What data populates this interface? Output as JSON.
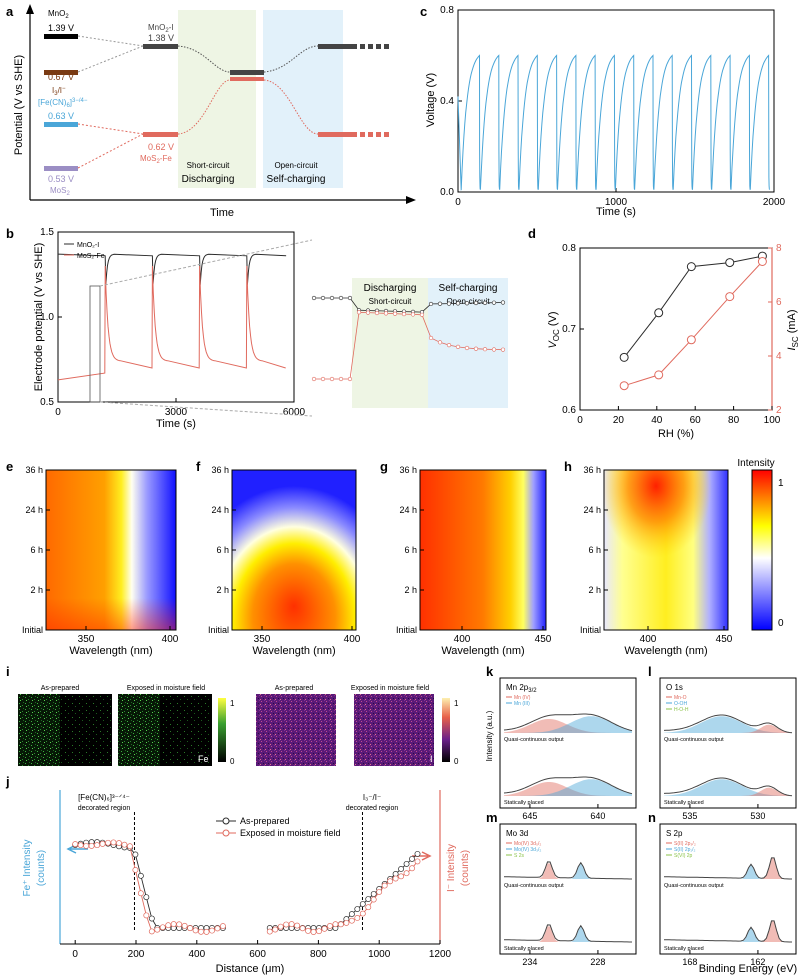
{
  "panels": {
    "a": "a",
    "b": "b",
    "c": "c",
    "d": "d",
    "e": "e",
    "f": "f",
    "g": "g",
    "h": "h",
    "i": "i",
    "j": "j",
    "k": "k",
    "l": "l",
    "m": "m",
    "n": "n"
  },
  "colors": {
    "black": "#2b2b2b",
    "blue": "#4aa6d8",
    "red": "#e06a5e",
    "brown": "#7a3a12",
    "purple": "#9b8ec4",
    "green_bg": "#eef5e4",
    "blue_bg": "#e2f1fa",
    "gray": "#888888"
  },
  "panel_a": {
    "ylabel": "Potential (V vs SHE)",
    "xlabel": "Time",
    "levels": [
      {
        "label": "MnO",
        "sub": "2",
        "value": "1.39 V"
      },
      {
        "label": "I",
        "sub": "3",
        "label2": "/I",
        "sup2": "−",
        "value": "0.67 V"
      },
      {
        "label": "[Fe(CN)",
        "sub": "6",
        "label2": "]",
        "sup2": "3−/4−",
        "value": "0.63 V"
      },
      {
        "label": "MoS",
        "sub": "2",
        "value": "0.53 V"
      }
    ],
    "mid_top": {
      "label": "MnO",
      "sub": "2",
      "label2": "-I",
      "value": "1.38 V"
    },
    "mid_bot": {
      "label": "MoS",
      "sub": "2",
      "label2": "-Fe",
      "value": "0.62 V"
    },
    "discharge_1": "Short-circuit",
    "discharge_2": "Discharging",
    "charge_1": "Open-circuit",
    "charge_2": "Self-charging"
  },
  "chart_data": [
    {
      "panel": "c",
      "type": "line",
      "xlabel": "Time (s)",
      "ylabel": "Voltage (V)",
      "xlim": [
        0,
        2000
      ],
      "ylim": [
        0.0,
        0.8
      ],
      "xticks": [
        "0",
        "1000",
        "2000"
      ],
      "yticks": [
        "0.0",
        "0.4",
        "0.8"
      ],
      "cycles": 16,
      "vmin": 0.01,
      "vmax": 0.6,
      "period_s": 122
    },
    {
      "panel": "b",
      "type": "line",
      "xlabel": "Time (s)",
      "ylabel": "Electrode potential (V vs SHE)",
      "xlim": [
        0,
        6000
      ],
      "ylim": [
        0.5,
        1.5
      ],
      "xticks": [
        "0",
        "3000",
        "6000"
      ],
      "yticks": [
        "0.5",
        "1.0",
        "1.5"
      ],
      "series": [
        {
          "name": "MnO₂-I",
          "baseline": 1.37
        },
        {
          "name": "MoS₂-Fe",
          "baseline": 0.63
        }
      ],
      "spike_times": [
        1200,
        2400,
        3600,
        4800
      ],
      "inset": {
        "left_title": "Discharging",
        "left_sub": "Short-circuit",
        "right_title": "Self-charging",
        "right_sub": "Open-circuit"
      }
    },
    {
      "panel": "d",
      "type": "line",
      "xlabel": "RH (%)",
      "ylabel_left": "V",
      "ylabel_left_sub": "OC",
      "ylabel_left_unit": " (V)",
      "ylabel_right": "I",
      "ylabel_right_sub": "SC",
      "ylabel_right_unit": " (mA)",
      "xlim": [
        0,
        100
      ],
      "ylim_left": [
        0.6,
        0.8
      ],
      "ylim_right": [
        2,
        8
      ],
      "xticks": [
        "0",
        "20",
        "40",
        "60",
        "80",
        "100"
      ],
      "yticks_left": [
        "0.6",
        "0.7",
        "0.8"
      ],
      "yticks_right": [
        "2",
        "4",
        "6",
        "8"
      ],
      "x": [
        23,
        41,
        58,
        78,
        95
      ],
      "voc": [
        0.665,
        0.72,
        0.777,
        0.782,
        0.79
      ],
      "isc": [
        2.9,
        3.3,
        4.6,
        6.2,
        7.5
      ]
    },
    {
      "panel": "e-h",
      "type": "heatmap",
      "xlabel": "Wavelength (nm)",
      "yticks": [
        "Initial",
        "2 h",
        "6 h",
        "24 h",
        "36 h"
      ],
      "e_xticks": [
        "350",
        "400"
      ],
      "f_xticks": [
        "350",
        "400"
      ],
      "g_xticks": [
        "400",
        "450"
      ],
      "h_xticks": [
        "400",
        "450"
      ],
      "colorbar_title": "Intensity",
      "colorbar_max": "1",
      "colorbar_min": "0"
    },
    {
      "panel": "j",
      "type": "line",
      "xlabel": "Distance (μm)",
      "ylabel_left": "Fe⁺ Intensity",
      "ylabel_left_2": "(counts)",
      "ylabel_right": "I⁻ Intensity",
      "ylabel_right_2": "(counts)",
      "xlim": [
        -50,
        1200
      ],
      "xticks": [
        "0",
        "200",
        "400",
        "600",
        "800",
        "1000",
        "1200"
      ],
      "series": [
        {
          "name": "As-prepared"
        },
        {
          "name": "Exposed in moisture field"
        }
      ],
      "region_left": "[Fe(CN)₆]³⁻ᐟ⁴⁻",
      "region_left_2": "decorated region",
      "region_right": "I₃⁻/I⁻",
      "region_right_2": "decorated region"
    },
    {
      "panel": "k-n",
      "type": "line",
      "xlabel": "Binding Energy (eV)",
      "ylabel": "Intensity (a.u.)",
      "k": {
        "title": "Mn 2p",
        "sub": "3/2",
        "xticks": [
          "645",
          "640"
        ],
        "legend": [
          "Mn (IV)",
          "Mn (III)"
        ]
      },
      "l": {
        "title": "O 1s",
        "xticks": [
          "535",
          "530"
        ],
        "legend": [
          "Mn-O",
          "O-OH",
          "H-O-H"
        ]
      },
      "m": {
        "title": "Mo 3d",
        "xticks": [
          "234",
          "228"
        ],
        "legend": [
          "Mo(IV) 3d₅/₂",
          "Mo(IV) 3d₃/₂",
          "S 2s"
        ]
      },
      "n": {
        "title": "S 2p",
        "xticks": [
          "168",
          "162"
        ],
        "legend": [
          "S(II) 2p₃/₂",
          "S(II) 2p₁/₂",
          "S(VI) 2p"
        ]
      },
      "quasi": "Quasi-continuous output",
      "static": "Statically placed"
    }
  ],
  "panel_i": {
    "as_prepared": "As-prepared",
    "exposed": "Exposed in moisture field",
    "fe_label": "Fe",
    "i_label": "I",
    "cb_max": "1",
    "cb_min": "0"
  }
}
